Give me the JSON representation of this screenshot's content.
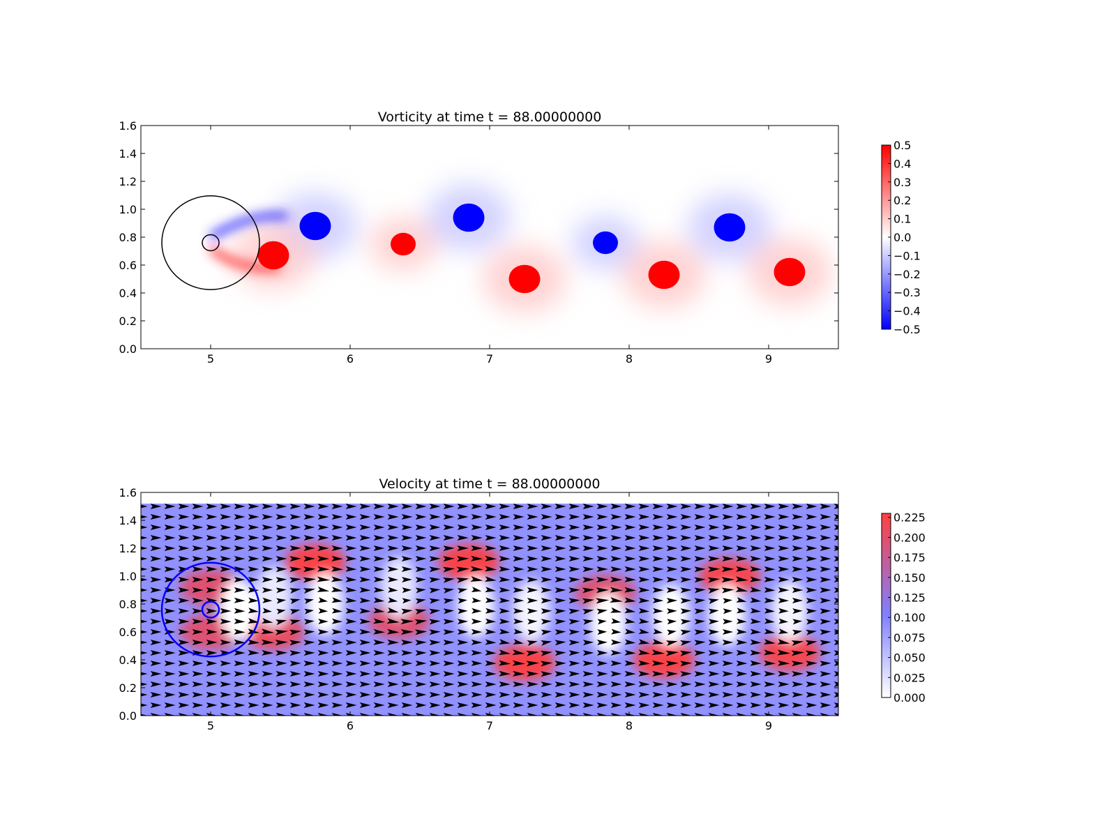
{
  "chart_data": [
    {
      "type": "heatmap",
      "title": "Vorticity at time t =    88.00000000",
      "xlim": [
        4.5,
        9.5
      ],
      "ylim": [
        0.0,
        1.6
      ],
      "xticks": [
        5,
        6,
        7,
        8,
        9
      ],
      "yticks": [
        0.0,
        0.2,
        0.4,
        0.6,
        0.8,
        1.0,
        1.2,
        1.4,
        1.6
      ],
      "colormap": [
        "#0000ff",
        "#ffffff",
        "#ff0000"
      ],
      "colorbar": {
        "min": -0.5,
        "max": 0.5,
        "ticks": [
          "0.5",
          "0.4",
          "0.3",
          "0.2",
          "0.1",
          "0.0",
          "−0.1",
          "−0.2",
          "−0.3",
          "−0.4",
          "−0.5"
        ]
      },
      "vortices": [
        {
          "x": 5.75,
          "y": 0.88,
          "value": -0.5,
          "radius": 0.15
        },
        {
          "x": 5.45,
          "y": 0.67,
          "value": 0.5,
          "radius": 0.15
        },
        {
          "x": 6.38,
          "y": 0.75,
          "value": 0.5,
          "radius": 0.12
        },
        {
          "x": 6.85,
          "y": 0.94,
          "value": -0.5,
          "radius": 0.15
        },
        {
          "x": 7.25,
          "y": 0.5,
          "value": 0.5,
          "radius": 0.15
        },
        {
          "x": 7.83,
          "y": 0.76,
          "value": -0.5,
          "radius": 0.12
        },
        {
          "x": 8.25,
          "y": 0.53,
          "value": 0.5,
          "radius": 0.15
        },
        {
          "x": 8.72,
          "y": 0.87,
          "value": -0.5,
          "radius": 0.15
        },
        {
          "x": 9.15,
          "y": 0.55,
          "value": 0.5,
          "radius": 0.15
        }
      ],
      "circles": [
        {
          "x": 5.0,
          "y": 0.76,
          "r": 0.35,
          "color": "#000000"
        },
        {
          "x": 5.0,
          "y": 0.76,
          "r": 0.06,
          "color": "#000000"
        }
      ]
    },
    {
      "type": "heatmap",
      "title": "Velocity at time t =    88.00000000",
      "xlim": [
        4.5,
        9.5
      ],
      "ylim": [
        0.0,
        1.6
      ],
      "xticks": [
        5,
        6,
        7,
        8,
        9
      ],
      "yticks": [
        0.0,
        0.2,
        0.4,
        0.6,
        0.8,
        1.0,
        1.2,
        1.4,
        1.6
      ],
      "colormap": [
        "#ffffff",
        "#8080ff",
        "#ff4040"
      ],
      "background_level": 0.1,
      "field_top": 1.52,
      "colorbar": {
        "min": 0.0,
        "max": 0.23,
        "ticks": [
          "0.225",
          "0.200",
          "0.175",
          "0.150",
          "0.125",
          "0.100",
          "0.075",
          "0.050",
          "0.025",
          "0.000"
        ]
      },
      "fast_regions": [
        {
          "x": 5.75,
          "y": 1.1,
          "value": 0.225
        },
        {
          "x": 5.45,
          "y": 0.6,
          "value": 0.21
        },
        {
          "x": 6.35,
          "y": 0.68,
          "value": 0.2
        },
        {
          "x": 6.85,
          "y": 1.1,
          "value": 0.225
        },
        {
          "x": 7.25,
          "y": 0.38,
          "value": 0.225
        },
        {
          "x": 7.83,
          "y": 0.88,
          "value": 0.2
        },
        {
          "x": 8.25,
          "y": 0.4,
          "value": 0.225
        },
        {
          "x": 8.72,
          "y": 1.0,
          "value": 0.22
        },
        {
          "x": 9.15,
          "y": 0.45,
          "value": 0.22
        },
        {
          "x": 5.0,
          "y": 0.6,
          "value": 0.2
        },
        {
          "x": 5.0,
          "y": 0.92,
          "value": 0.2
        }
      ],
      "slow_regions": [
        {
          "x": 5.2,
          "y": 0.76,
          "value": 0.0
        },
        {
          "x": 5.45,
          "y": 0.85,
          "value": 0.02
        },
        {
          "x": 5.82,
          "y": 0.8,
          "value": 0.0
        },
        {
          "x": 6.35,
          "y": 0.92,
          "value": 0.02
        },
        {
          "x": 6.9,
          "y": 0.78,
          "value": 0.0
        },
        {
          "x": 7.3,
          "y": 0.75,
          "value": 0.01
        },
        {
          "x": 7.85,
          "y": 0.66,
          "value": 0.0
        },
        {
          "x": 8.3,
          "y": 0.72,
          "value": 0.0
        },
        {
          "x": 8.7,
          "y": 0.72,
          "value": 0.0
        },
        {
          "x": 9.15,
          "y": 0.75,
          "value": 0.01
        }
      ],
      "circles": [
        {
          "x": 5.0,
          "y": 0.76,
          "r": 0.35,
          "color": "#0000ff"
        },
        {
          "x": 5.0,
          "y": 0.76,
          "r": 0.06,
          "color": "#0000ff"
        }
      ],
      "quiver": {
        "dx": 0.1,
        "dy": 0.075,
        "color": "#000000"
      }
    }
  ]
}
